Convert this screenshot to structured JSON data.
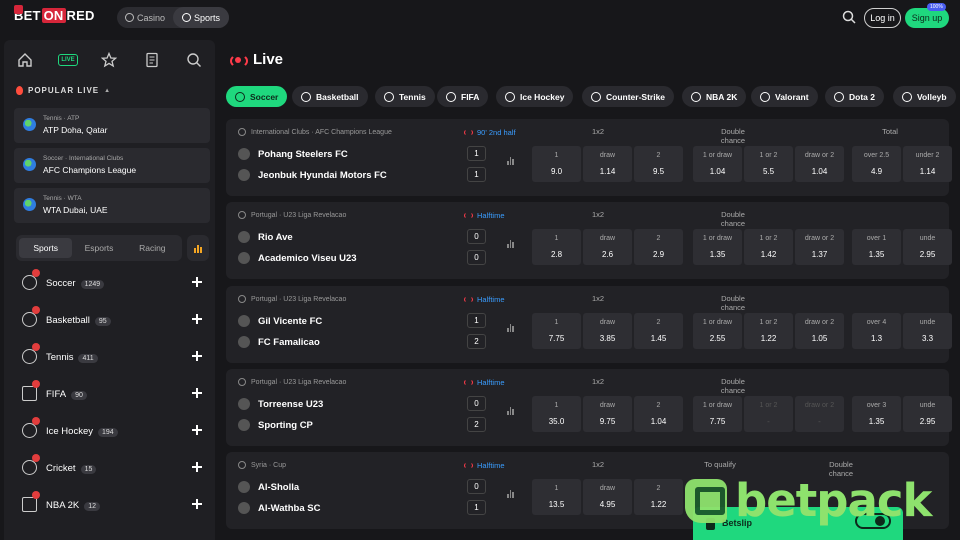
{
  "header": {
    "brand_pre": "BET",
    "brand_on": "ON",
    "brand_post": "RED",
    "switch": [
      {
        "label": "Casino",
        "active": false
      },
      {
        "label": "Sports",
        "active": true
      }
    ],
    "login_label": "Log in",
    "signup_label": "Sign up",
    "signup_badge": "100%"
  },
  "sidebar": {
    "live_label": "LIVE",
    "popular_title": "POPULAR LIVE",
    "popular": [
      {
        "meta": "Tennis · ATP",
        "title": "ATP Doha, Qatar"
      },
      {
        "meta": "Soccer · International Clubs",
        "title": "AFC Champions League"
      },
      {
        "meta": "Tennis · WTA",
        "title": "WTA Dubai, UAE"
      }
    ],
    "tabs": [
      {
        "label": "Sports",
        "active": true
      },
      {
        "label": "Esports",
        "active": false
      },
      {
        "label": "Racing",
        "active": false
      }
    ],
    "sports": [
      {
        "name": "Soccer",
        "count": "1249"
      },
      {
        "name": "Basketball",
        "count": "95"
      },
      {
        "name": "Tennis",
        "count": "411"
      },
      {
        "name": "FIFA",
        "count": "90"
      },
      {
        "name": "Ice Hockey",
        "count": "194"
      },
      {
        "name": "Cricket",
        "count": "15"
      },
      {
        "name": "NBA 2K",
        "count": "12"
      }
    ]
  },
  "main": {
    "title": "Live",
    "sports_bar": [
      {
        "label": "Soccer",
        "active": true
      },
      {
        "label": "Basketball",
        "active": false
      },
      {
        "label": "Tennis",
        "active": false
      },
      {
        "label": "FIFA",
        "active": false
      },
      {
        "label": "Ice Hockey",
        "active": false
      },
      {
        "label": "Counter-Strike",
        "active": false
      },
      {
        "label": "NBA 2K",
        "active": false
      },
      {
        "label": "Valorant",
        "active": false
      },
      {
        "label": "Dota 2",
        "active": false
      },
      {
        "label": "Volleyb",
        "active": false
      }
    ],
    "events": [
      {
        "league": "International Clubs · AFC Champions League",
        "status": "90' 2nd half",
        "team1": "Pohang Steelers FC",
        "team2": "Jeonbuk Hyundai Motors FC",
        "score1": "1",
        "score2": "1",
        "groups": [
          "1x2",
          "Double chance",
          "Total"
        ],
        "odds": [
          {
            "l": "1",
            "v": "9.0"
          },
          {
            "l": "draw",
            "v": "1.14"
          },
          {
            "l": "2",
            "v": "9.5"
          },
          {
            "l": "1 or draw",
            "v": "1.04"
          },
          {
            "l": "1 or 2",
            "v": "5.5"
          },
          {
            "l": "draw or 2",
            "v": "1.04"
          },
          {
            "l": "over 2.5",
            "v": "4.9"
          },
          {
            "l": "under 2",
            "v": "1.14"
          }
        ]
      },
      {
        "league": "Portugal · U23 Liga Revelacao",
        "status": "Halftime",
        "team1": "Rio Ave",
        "team2": "Academico Viseu U23",
        "score1": "0",
        "score2": "0",
        "groups": [
          "1x2",
          "Double chance",
          ""
        ],
        "odds": [
          {
            "l": "1",
            "v": "2.8"
          },
          {
            "l": "draw",
            "v": "2.6"
          },
          {
            "l": "2",
            "v": "2.9"
          },
          {
            "l": "1 or draw",
            "v": "1.35"
          },
          {
            "l": "1 or 2",
            "v": "1.42"
          },
          {
            "l": "draw or 2",
            "v": "1.37"
          },
          {
            "l": "over 1",
            "v": "1.35"
          },
          {
            "l": "unde",
            "v": "2.95"
          }
        ]
      },
      {
        "league": "Portugal · U23 Liga Revelacao",
        "status": "Halftime",
        "team1": "Gil Vicente FC",
        "team2": "FC Famalicao",
        "score1": "1",
        "score2": "2",
        "groups": [
          "1x2",
          "Double chance",
          ""
        ],
        "odds": [
          {
            "l": "1",
            "v": "7.75"
          },
          {
            "l": "draw",
            "v": "3.85"
          },
          {
            "l": "2",
            "v": "1.45"
          },
          {
            "l": "1 or draw",
            "v": "2.55"
          },
          {
            "l": "1 or 2",
            "v": "1.22"
          },
          {
            "l": "draw or 2",
            "v": "1.05"
          },
          {
            "l": "over 4",
            "v": "1.3"
          },
          {
            "l": "unde",
            "v": "3.3"
          }
        ]
      },
      {
        "league": "Portugal · U23 Liga Revelacao",
        "status": "Halftime",
        "team1": "Torreense U23",
        "team2": "Sporting CP",
        "score1": "0",
        "score2": "2",
        "groups": [
          "1x2",
          "Double chance",
          ""
        ],
        "odds": [
          {
            "l": "1",
            "v": "35.0"
          },
          {
            "l": "draw",
            "v": "9.75"
          },
          {
            "l": "2",
            "v": "1.04"
          },
          {
            "l": "1 or draw",
            "v": "7.75"
          },
          {
            "l": "1 or 2",
            "v": "-"
          },
          {
            "l": "draw or 2",
            "v": "-"
          },
          {
            "l": "over 3",
            "v": "1.35"
          },
          {
            "l": "unde",
            "v": "2.95"
          }
        ]
      },
      {
        "league": "Syria · Cup",
        "status": "Halftime",
        "team1": "Al-Sholla",
        "team2": "Al-Wathba SC",
        "score1": "0",
        "score2": "1",
        "groups": [
          "1x2",
          "To qualify",
          "Double chance"
        ],
        "odds": [
          {
            "l": "1",
            "v": "13.5"
          },
          {
            "l": "draw",
            "v": "4.95"
          },
          {
            "l": "2",
            "v": "1.22"
          }
        ]
      }
    ]
  },
  "betslip": {
    "label": "Betslip",
    "extra": "or"
  },
  "watermark": {
    "text": "betpack"
  }
}
